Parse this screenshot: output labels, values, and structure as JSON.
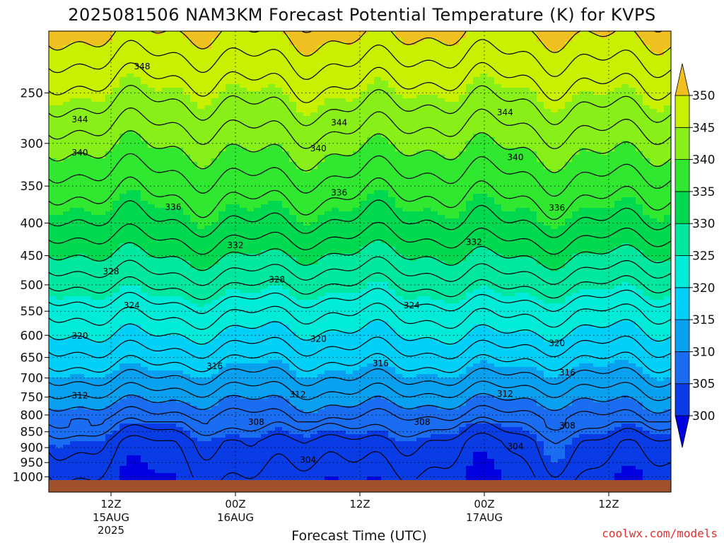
{
  "chart_data": {
    "type": "heatmap",
    "title": "2025081506 NAM3KM Forecast Potential Temperature (K) for KVPS",
    "xlabel": "Forecast Time (UTC)",
    "ylabel": "",
    "x_ticks": [
      {
        "label": "12Z",
        "sub": "15AUG",
        "sub2": "2025",
        "hour": 6
      },
      {
        "label": "00Z",
        "sub": "16AUG",
        "sub2": "",
        "hour": 18
      },
      {
        "label": "12Z",
        "sub": "",
        "sub2": "",
        "hour": 30
      },
      {
        "label": "00Z",
        "sub": "17AUG",
        "sub2": "",
        "hour": 42
      },
      {
        "label": "12Z",
        "sub": "",
        "sub2": "",
        "hour": 54
      }
    ],
    "xlim_hours": [
      0,
      60
    ],
    "y_ticks": [
      250,
      300,
      350,
      400,
      450,
      500,
      550,
      600,
      650,
      700,
      750,
      800,
      850,
      900,
      950,
      1000
    ],
    "ylim_hPa": [
      200,
      1025
    ],
    "y_scale": "log-pressure",
    "grid": "dotted",
    "colorbar": {
      "levels": [
        300,
        305,
        310,
        315,
        320,
        325,
        330,
        335,
        340,
        345,
        350
      ],
      "colors": [
        "#0000e0",
        "#0a3ce6",
        "#1a6cf0",
        "#0aa0f0",
        "#00d0f8",
        "#00ecd8",
        "#00e8a0",
        "#00d850",
        "#30e830",
        "#88f018",
        "#c8f000",
        "#f8f000",
        "#f0c020"
      ],
      "placement": "right",
      "units": "K"
    },
    "contour_labels": [
      {
        "value": 348,
        "hour": 9.0,
        "p": 227
      },
      {
        "value": 344,
        "hour": 3.0,
        "p": 275
      },
      {
        "value": 344,
        "hour": 28.0,
        "p": 278
      },
      {
        "value": 344,
        "hour": 44.0,
        "p": 268
      },
      {
        "value": 340,
        "hour": 3.0,
        "p": 310
      },
      {
        "value": 340,
        "hour": 26.0,
        "p": 305
      },
      {
        "value": 340,
        "hour": 45.0,
        "p": 315
      },
      {
        "value": 336,
        "hour": 12.0,
        "p": 377
      },
      {
        "value": 336,
        "hour": 28.0,
        "p": 358
      },
      {
        "value": 336,
        "hour": 49.0,
        "p": 378
      },
      {
        "value": 332,
        "hour": 18.0,
        "p": 433
      },
      {
        "value": 332,
        "hour": 41.0,
        "p": 428
      },
      {
        "value": 328,
        "hour": 6.0,
        "p": 476
      },
      {
        "value": 328,
        "hour": 22.0,
        "p": 490
      },
      {
        "value": 324,
        "hour": 8.0,
        "p": 538
      },
      {
        "value": 324,
        "hour": 35.0,
        "p": 538
      },
      {
        "value": 320,
        "hour": 3.0,
        "p": 600
      },
      {
        "value": 320,
        "hour": 26.0,
        "p": 607
      },
      {
        "value": 320,
        "hour": 49.0,
        "p": 617
      },
      {
        "value": 316,
        "hour": 16.0,
        "p": 670
      },
      {
        "value": 316,
        "hour": 32.0,
        "p": 663
      },
      {
        "value": 316,
        "hour": 50.0,
        "p": 686
      },
      {
        "value": 312,
        "hour": 3.0,
        "p": 745
      },
      {
        "value": 312,
        "hour": 24.0,
        "p": 742
      },
      {
        "value": 312,
        "hour": 44.0,
        "p": 740
      },
      {
        "value": 308,
        "hour": 20.0,
        "p": 820
      },
      {
        "value": 308,
        "hour": 36.0,
        "p": 820
      },
      {
        "value": 308,
        "hour": 50.0,
        "p": 830
      },
      {
        "value": 304,
        "hour": 25.0,
        "p": 940
      },
      {
        "value": 304,
        "hour": 45.0,
        "p": 895
      }
    ]
  },
  "credit": "coolwx.com/models"
}
